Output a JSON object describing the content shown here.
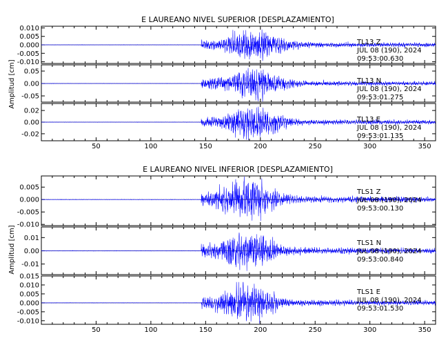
{
  "page": {
    "palette": {
      "trace": "#0000ff",
      "axis": "#000000",
      "background": "#ffffff"
    }
  },
  "chart_data": [
    {
      "type": "line",
      "title": "E LAUREANO NIVEL SUPERIOR [DESPLAZAMIENTO]",
      "ylabel": "Amplitud [cm]",
      "xlim": [
        0,
        360
      ],
      "xticks": [
        50,
        100,
        150,
        200,
        250,
        300,
        350
      ],
      "signal": {
        "onset": 146,
        "peak": 195,
        "max_abs_over_ylim": 0.95
      },
      "panels": [
        {
          "name": "TL13 Z",
          "station": "TL13",
          "component": "Z",
          "date": "JUL 08 (190), 2024",
          "time": "09:53:00.630",
          "ylim": [
            -0.011,
            0.011
          ],
          "yticks": [
            "0.010",
            "0.005",
            "0.000",
            "-0.005",
            "-0.010"
          ],
          "ytick_values": [
            0.01,
            0.005,
            0.0,
            -0.005,
            -0.01
          ]
        },
        {
          "name": "TL13 N",
          "station": "TL13",
          "component": "N",
          "date": "JUL 08 (190), 2024",
          "time": "09:53:01.275",
          "ylim": [
            -0.075,
            0.075
          ],
          "yticks": [
            "0.05",
            "0.00",
            "-0.05"
          ],
          "ytick_values": [
            0.05,
            0.0,
            -0.05
          ]
        },
        {
          "name": "TL13 E",
          "station": "TL13",
          "component": "E",
          "date": "JUL 08 (190), 2024",
          "time": "09:53:01.135",
          "ylim": [
            -0.032,
            0.032
          ],
          "yticks": [
            "0.02",
            "0.00",
            "-0.02"
          ],
          "ytick_values": [
            0.02,
            0.0,
            -0.02
          ]
        }
      ]
    },
    {
      "type": "line",
      "title": "E LAUREANO NIVEL INFERIOR [DESPLAZAMIENTO]",
      "ylabel": "Amplitud [cm]",
      "xlim": [
        0,
        360
      ],
      "xticks": [
        50,
        100,
        150,
        200,
        250,
        300,
        350
      ],
      "signal": {
        "onset": 146,
        "peak": 188,
        "max_abs_over_ylim": 0.95
      },
      "panels": [
        {
          "name": "TLS1 Z",
          "station": "TLS1",
          "component": "Z",
          "date": "JUL 08 (190), 2024",
          "time": "09:53:00.130",
          "ylim": [
            -0.0105,
            0.0095
          ],
          "yticks": [
            "0.005",
            "0.000",
            "-0.005",
            "-0.010"
          ],
          "ytick_values": [
            0.005,
            0.0,
            -0.005,
            -0.01
          ]
        },
        {
          "name": "TLS1 N",
          "station": "TLS1",
          "component": "N",
          "date": "JUL 08 (190), 2024",
          "time": "09:53:00.840",
          "ylim": [
            -0.018,
            0.018
          ],
          "yticks": [
            "0.01",
            "0.00",
            "-0.01"
          ],
          "ytick_values": [
            0.01,
            0.0,
            -0.01
          ]
        },
        {
          "name": "TLS1 E",
          "station": "TLS1",
          "component": "E",
          "date": "JUL 08 (190), 2024",
          "time": "09:53:01.530",
          "ylim": [
            -0.012,
            0.015
          ],
          "yticks": [
            "0.015",
            "0.010",
            "0.005",
            "0.000",
            "-0.005",
            "-0.010"
          ],
          "ytick_values": [
            0.015,
            0.01,
            0.005,
            0.0,
            -0.005,
            -0.01
          ]
        }
      ]
    }
  ]
}
